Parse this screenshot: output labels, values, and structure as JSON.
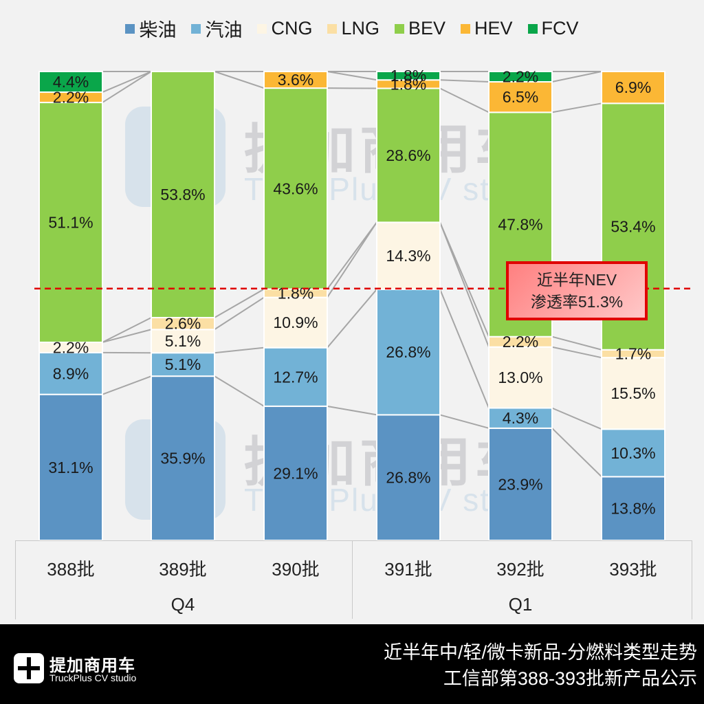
{
  "chart_data": {
    "type": "bar",
    "stacked": true,
    "normalized": true,
    "categories": [
      "388批",
      "389批",
      "390批",
      "391批",
      "392批",
      "393批"
    ],
    "groups": [
      {
        "label": "Q4",
        "categories": [
          "388批",
          "389批",
          "390批"
        ]
      },
      {
        "label": "Q1",
        "categories": [
          "391批",
          "392批",
          "393批"
        ]
      }
    ],
    "series": [
      {
        "name": "柴油",
        "color": "#5b93c3",
        "values": [
          31.1,
          35.9,
          29.1,
          26.8,
          23.9,
          13.8
        ]
      },
      {
        "name": "汽油",
        "color": "#72b2d6",
        "values": [
          8.9,
          5.1,
          12.7,
          26.8,
          4.3,
          10.3
        ]
      },
      {
        "name": "CNG",
        "color": "#fdf5e4",
        "values": [
          2.2,
          5.1,
          10.9,
          14.3,
          13.0,
          15.5
        ]
      },
      {
        "name": "LNG",
        "color": "#fbdfa4",
        "values": [
          0,
          2.6,
          1.8,
          0,
          2.2,
          1.7
        ]
      },
      {
        "name": "BEV",
        "color": "#8fce4b",
        "values": [
          51.1,
          53.8,
          43.6,
          28.6,
          47.8,
          53.4
        ]
      },
      {
        "name": "HEV",
        "color": "#fbb735",
        "values": [
          2.2,
          0,
          3.6,
          1.8,
          6.5,
          6.9
        ]
      },
      {
        "name": "FCV",
        "color": "#0aa64a",
        "values": [
          4.4,
          0,
          0,
          1.8,
          2.2,
          0
        ]
      }
    ],
    "data_labels": [
      [
        "31.1%",
        "8.9%",
        "2.2%",
        "",
        "51.1%",
        "2.2%",
        "4.4%"
      ],
      [
        "35.9%",
        "5.1%",
        "5.1%",
        "2.6%",
        "53.8%",
        "",
        ""
      ],
      [
        "29.1%",
        "12.7%",
        "10.9%",
        "1.8%",
        "43.6%",
        "3.6%",
        ""
      ],
      [
        "26.8%",
        "26.8%",
        "14.3%",
        "",
        "28.6%",
        "1.8%",
        "1.8%"
      ],
      [
        "23.9%",
        "4.3%",
        "13.0%",
        "2.2%",
        "47.8%",
        "6.5%",
        "2.2%"
      ],
      [
        "13.8%",
        "10.3%",
        "15.5%",
        "1.7%",
        "53.4%",
        "6.9%",
        ""
      ]
    ],
    "reference_line": {
      "value_percent": 53.7,
      "style": "dashed",
      "color": "#e00000"
    },
    "annotation": {
      "line1": "近半年NEV",
      "line2": "渗透率51.3%"
    },
    "legend_position": "top",
    "ylim": [
      0,
      100
    ],
    "grid": false,
    "series_lines": true
  },
  "legend": [
    {
      "label": "柴油",
      "color": "#5b93c3"
    },
    {
      "label": "汽油",
      "color": "#72b2d6"
    },
    {
      "label": "CNG",
      "color": "#fdf5e4"
    },
    {
      "label": "LNG",
      "color": "#fbdfa4"
    },
    {
      "label": "BEV",
      "color": "#8fce4b"
    },
    {
      "label": "HEV",
      "color": "#fbb735"
    },
    {
      "label": "FCV",
      "color": "#0aa64a"
    }
  ],
  "watermark": {
    "cn": "提加商用车",
    "en": "TruckPlus CV studio"
  },
  "footer": {
    "logo_cn": "提加商用车",
    "logo_en": "TruckPlus CV studio",
    "title_line1": "近半年中/轻/微卡新品-分燃料类型走势",
    "title_line2": "工信部第388-393批新产品公示"
  }
}
